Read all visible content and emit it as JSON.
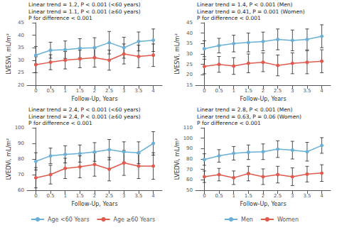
{
  "chart_data": [
    {
      "type": "line",
      "annotations": [
        "Linear trend = 1.2, P < 0.001 (<60 years)",
        "Linear trend = 1.1, P < 0.001 (≥60 years)",
        "P for difference < 0.001"
      ],
      "xlabel": "Follow-Up, Years",
      "ylabel": "LVESVi, mL/m²",
      "x": [
        0,
        0.5,
        1,
        1.5,
        2,
        2.5,
        3,
        3.5,
        4
      ],
      "xlim": [
        -0.3,
        4.3
      ],
      "xticks": [
        0,
        0.5,
        1,
        1.5,
        2,
        2.5,
        3,
        3.5,
        4
      ],
      "ylim": [
        20,
        45
      ],
      "yticks": [
        20,
        25,
        30,
        35,
        40,
        45
      ],
      "grid": false,
      "marker": "circle",
      "series": [
        {
          "color": "#6aafd6",
          "values": [
            32.0,
            34.0,
            34.2,
            34.8,
            35.0,
            37.0,
            35.0,
            37.5,
            38.0
          ],
          "errors": [
            3.5,
            3.2,
            3.5,
            3.8,
            4.0,
            4.5,
            4.2,
            3.8,
            4.5
          ]
        },
        {
          "color": "#e05a4e",
          "values": [
            28.2,
            29.2,
            30.0,
            30.5,
            31.0,
            30.0,
            32.5,
            31.5,
            32.0
          ],
          "errors": [
            3.2,
            3.0,
            3.5,
            3.5,
            3.8,
            4.0,
            4.0,
            4.5,
            4.5
          ]
        }
      ]
    },
    {
      "type": "line",
      "annotations": [
        "Linear trend = 1.4, P < 0.001 (Men)",
        "Linear trend = 0.41, P = 0.001 (Women)",
        "P for difference < 0.001"
      ],
      "xlabel": "Follow-Up, Years",
      "ylabel": "LVESVi, mL/m²",
      "x": [
        0,
        0.5,
        1,
        1.5,
        2,
        2.5,
        3,
        3.5,
        4
      ],
      "xlim": [
        -0.3,
        4.3
      ],
      "xticks": [
        0,
        0.5,
        1,
        1.5,
        2,
        2.5,
        3,
        3.5,
        4
      ],
      "ylim": [
        15,
        45
      ],
      "yticks": [
        15,
        20,
        25,
        30,
        35,
        40,
        45
      ],
      "grid": false,
      "marker": "circle",
      "series": [
        {
          "color": "#6aafd6",
          "values": [
            32.5,
            34.0,
            35.0,
            35.5,
            36.0,
            37.0,
            36.5,
            37.0,
            38.5
          ],
          "errors": [
            3.8,
            3.5,
            4.0,
            4.5,
            4.5,
            5.0,
            5.0,
            5.0,
            5.5
          ]
        },
        {
          "color": "#e05a4e",
          "values": [
            24.0,
            25.0,
            24.2,
            25.5,
            26.0,
            24.5,
            25.5,
            26.0,
            26.5
          ],
          "errors": [
            3.5,
            3.8,
            4.0,
            4.5,
            4.5,
            5.0,
            5.0,
            5.5,
            5.5
          ]
        }
      ]
    },
    {
      "type": "line",
      "annotations": [
        "Linear trend = 2.4, P < 0.001 (<60 years)",
        "Linear trend = 2.4, P < 0.001 (≥60 years)",
        "P for difference < 0.001"
      ],
      "xlabel": "Follow-Up, Years",
      "ylabel": "LVEDVi, mL/m²",
      "x": [
        0,
        0.5,
        1,
        1.5,
        2,
        2.5,
        3,
        3.5,
        4
      ],
      "xlim": [
        -0.3,
        4.3
      ],
      "xticks": [
        0,
        0.5,
        1,
        1.5,
        2,
        2.5,
        3,
        3.5,
        4
      ],
      "ylim": [
        60,
        100
      ],
      "yticks": [
        60,
        70,
        80,
        90,
        100
      ],
      "grid": false,
      "marker": "circle",
      "legend": "bottom",
      "series": [
        {
          "name": "Age <60 Years",
          "color": "#6aafd6",
          "values": [
            78.5,
            82.0,
            83.0,
            83.5,
            84.5,
            86.0,
            84.5,
            84.0,
            90.0
          ],
          "errors": [
            5.5,
            5.0,
            5.5,
            5.5,
            6.0,
            6.5,
            6.5,
            7.0,
            7.5
          ]
        },
        {
          "name": "Age ≥60 Years",
          "color": "#e05a4e",
          "values": [
            68.0,
            70.0,
            74.0,
            75.0,
            76.5,
            73.5,
            77.5,
            75.5,
            75.5
          ],
          "errors": [
            6.5,
            6.0,
            6.5,
            7.0,
            7.5,
            7.5,
            8.0,
            8.0,
            8.5
          ]
        }
      ]
    },
    {
      "type": "line",
      "annotations": [
        "Linear trend = 2.8, P < 0.001 (Men)",
        "Linear trend = 0.63, P = 0.06 (Women)",
        "P for difference < 0.001"
      ],
      "xlabel": "Follow-Up, Years",
      "ylabel": "LVEDVi, mL/m²",
      "x": [
        0,
        0.5,
        1,
        1.5,
        2,
        2.5,
        3,
        3.5,
        4
      ],
      "xlim": [
        -0.3,
        4.3
      ],
      "xticks": [
        0,
        0.5,
        1,
        1.5,
        2,
        2.5,
        3,
        3.5,
        4
      ],
      "ylim": [
        50,
        110
      ],
      "yticks": [
        50,
        60,
        70,
        80,
        90,
        100,
        110
      ],
      "grid": false,
      "marker": "circle",
      "legend": "bottom",
      "series": [
        {
          "name": "Men",
          "color": "#6aafd6",
          "values": [
            79.5,
            83.0,
            85.5,
            86.5,
            87.0,
            89.5,
            88.5,
            87.0,
            93.0
          ],
          "errors": [
            5.5,
            6.0,
            6.5,
            7.0,
            7.5,
            8.0,
            8.5,
            9.0,
            7.5
          ]
        },
        {
          "name": "Women",
          "color": "#e05a4e",
          "values": [
            63.0,
            65.0,
            62.0,
            66.0,
            63.0,
            65.0,
            63.0,
            65.5,
            66.5
          ],
          "errors": [
            5.5,
            6.0,
            6.5,
            7.0,
            7.5,
            8.0,
            8.5,
            7.5,
            8.0
          ]
        }
      ]
    }
  ]
}
